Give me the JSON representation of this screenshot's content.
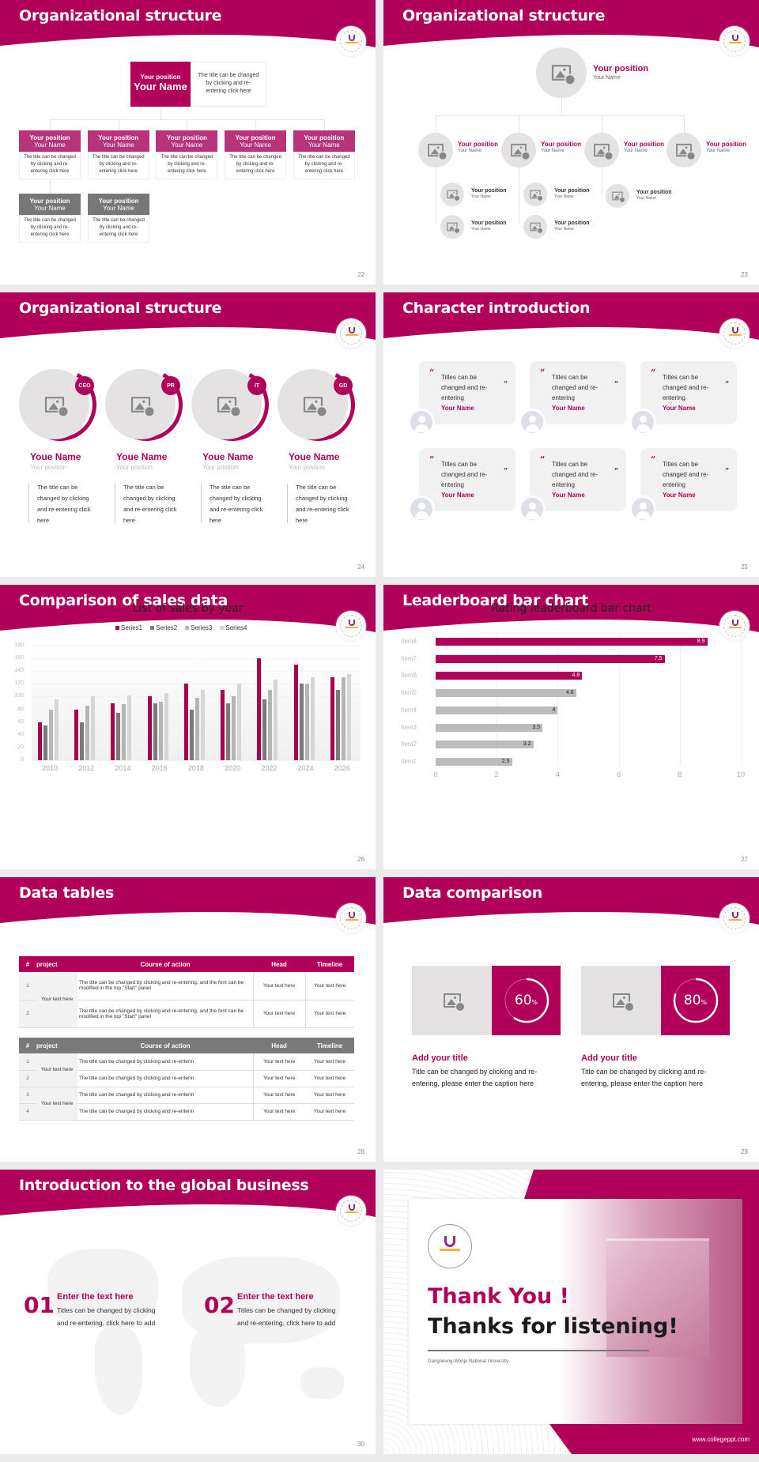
{
  "colors": {
    "accent": "#b0005a",
    "gray_node": "#777777",
    "light_gray": "#e4e2e3",
    "bar_gray": "#bcbcbc"
  },
  "logo_icon": "university-seal-icon",
  "slides": [
    {
      "id": "s22",
      "title": "Organizational structure",
      "page": "22",
      "top": {
        "position": "Your position",
        "name": "Your Name",
        "desc": "The title can be changed by clicking and re-entering click here"
      },
      "nodes": [
        {
          "position": "Your position",
          "name": "Your Name",
          "desc": "The title can be changed by clicking and re-entering click here"
        },
        {
          "position": "Your position",
          "name": "Your Name",
          "desc": "The title can be changed by clicking and re-entering click here"
        },
        {
          "position": "Your position",
          "name": "Your Name",
          "desc": "The title can be changed by clicking and re-entering click here"
        },
        {
          "position": "Your position",
          "name": "Your Name",
          "desc": "The title can be changed by clicking and re-entering click here"
        },
        {
          "position": "Your position",
          "name": "Your Name",
          "desc": "The title can be changed by clicking and re-entering click here"
        }
      ],
      "sub_nodes": [
        {
          "position": "Your position",
          "name": "Your Name",
          "desc": "The title can be changed by clicking and re-entering click here"
        },
        {
          "position": "Your position",
          "name": "Your Name",
          "desc": "The title can be changed by clicking and re-entering click here"
        }
      ]
    },
    {
      "id": "s23",
      "title": "Organizational structure",
      "page": "23",
      "top": {
        "position": "Your position",
        "name": "Your Name"
      },
      "level2": [
        {
          "position": "Your position",
          "name": "Your Name"
        },
        {
          "position": "Your position",
          "name": "Your Name"
        },
        {
          "position": "Your position",
          "name": "Your Name"
        },
        {
          "position": "Your position",
          "name": "Your Name"
        }
      ],
      "level3": [
        {
          "position": "Your position",
          "name": "Your Name"
        },
        {
          "position": "Your position",
          "name": "Your Name"
        },
        {
          "position": "Your position",
          "name": "Your Name"
        },
        {
          "position": "Your position",
          "name": "Your Name"
        },
        {
          "position": "Your position",
          "name": "Your Name"
        }
      ]
    },
    {
      "id": "s24",
      "title": "Organizational structure",
      "page": "24",
      "people": [
        {
          "badge": "CEO",
          "name": "Youe Name",
          "position": "Your position",
          "desc": "The title can be changed by clicking and re-entering click here"
        },
        {
          "badge": "PR",
          "name": "Youe Name",
          "position": "Your position",
          "desc": "The title can be changed by clicking and re-entering click here"
        },
        {
          "badge": "IT",
          "name": "Youe Name",
          "position": "Your position",
          "desc": "The title can be changed by clicking and re-entering click here"
        },
        {
          "badge": "GD",
          "name": "Youe Name",
          "position": "Your position",
          "desc": "The title can be changed by clicking and re-entering click here"
        }
      ]
    },
    {
      "id": "s25",
      "title": "Character introduction",
      "page": "25",
      "open_quote": "“",
      "close_quote": "”",
      "cards": [
        {
          "text": "Titles can be changed and re-entering",
          "name": "Your Name"
        },
        {
          "text": "Titles can be changed and re-entering",
          "name": "Your Name"
        },
        {
          "text": "Titles can be changed and re-entering",
          "name": "Your Name"
        },
        {
          "text": "Titles can be changed and re-entering",
          "name": "Your Name"
        },
        {
          "text": "Titles can be changed and re-entering",
          "name": "Your Name"
        },
        {
          "text": "Titles can be changed and re-entering",
          "name": "Your Name"
        }
      ]
    },
    {
      "id": "s26",
      "title": "Comparison of sales data",
      "page": "26"
    },
    {
      "id": "s27",
      "title": "Leaderboard bar chart",
      "page": "27"
    },
    {
      "id": "s28",
      "title": "Data tables",
      "page": "28",
      "headers": [
        "#",
        "project",
        "Course of action",
        "Head",
        "Timeline"
      ],
      "table1": {
        "project": "Your text here",
        "rows": [
          {
            "n": "1",
            "action": "The title can be changed by clicking and re-entering, and the font can be modified in the top \"Start\" panel",
            "head": "Your text here",
            "timeline": "Your text here"
          },
          {
            "n": "2",
            "action": "The title can be changed by clicking and re-entering, and the font can be modified in the top \"Start\" panel",
            "head": "Your text here",
            "timeline": "Your text here"
          }
        ]
      },
      "table2": {
        "projects": [
          "Your text here",
          "Your text here"
        ],
        "rows": [
          {
            "n": "1",
            "action": "The title can be changed by clicking and re-enterin",
            "head": "Your text here",
            "timeline": "Your text here"
          },
          {
            "n": "2",
            "action": "The title can be changed by clicking and re-enterin",
            "head": "Your text here",
            "timeline": "Your text here"
          },
          {
            "n": "3",
            "action": "The title can be changed by clicking and re-enterin",
            "head": "Your text here",
            "timeline": "Your text here"
          },
          {
            "n": "4",
            "action": "The title can be changed by clicking and re-enterin",
            "head": "Your text here",
            "timeline": "Your text here"
          }
        ]
      }
    },
    {
      "id": "s29",
      "title": "Data comparison",
      "page": "29",
      "items": [
        {
          "percent": "60",
          "unit": "%",
          "value": 60,
          "title": "Add your title",
          "desc": "Title can be changed by clicking and re-entering, please enter the caption here"
        },
        {
          "percent": "80",
          "unit": "%",
          "value": 80,
          "title": "Add your title",
          "desc": "Title can be changed by clicking and re-entering, please enter the caption here"
        }
      ]
    },
    {
      "id": "s30",
      "title": "Introduction to the global business",
      "page": "30",
      "items": [
        {
          "num": "01",
          "heading": "Enter the text here",
          "text": "Titles can be changed by clicking and re-entering, click here to add"
        },
        {
          "num": "02",
          "heading": "Enter the text here",
          "text": "Titles can be changed by clicking and re-entering, click here to add"
        }
      ]
    },
    {
      "id": "s31",
      "thank_you": "Thank You !",
      "thanks": "Thanks for listening!",
      "university": "Gangneung-Wonju National University",
      "website": "www.collegeppt.com"
    }
  ],
  "chart_data": [
    {
      "type": "bar",
      "title": "List of sales by year",
      "categories": [
        "2010",
        "2012",
        "2014",
        "2016",
        "2018",
        "2020",
        "2022",
        "2024",
        "2026"
      ],
      "series": [
        {
          "name": "Series1",
          "color": "#a8004e",
          "values": [
            60,
            80,
            90,
            100,
            120,
            110,
            160,
            150,
            130
          ]
        },
        {
          "name": "Series2",
          "color": "#7a7a7a",
          "values": [
            55,
            60,
            75,
            90,
            80,
            90,
            96,
            120,
            110
          ]
        },
        {
          "name": "Series3",
          "color": "#b5b5b5",
          "values": [
            80,
            86,
            88,
            92,
            98,
            100,
            110,
            120,
            130
          ]
        },
        {
          "name": "Series4",
          "color": "#d6d6d6",
          "values": [
            95,
            100,
            102,
            105,
            110,
            120,
            127,
            130,
            135
          ]
        }
      ],
      "xlabel": "",
      "ylabel": "",
      "yticks": [
        "180",
        "160",
        "140",
        "120",
        "100",
        "80",
        "60",
        "40",
        "20",
        "0"
      ],
      "ylim": [
        0,
        180
      ],
      "legend_position": "top",
      "grid": true
    },
    {
      "type": "bar",
      "orientation": "horizontal",
      "title": "Rating leaderboard bar chart",
      "categories": [
        "Item8",
        "Item7",
        "Item6",
        "Item5",
        "Item4",
        "Item3",
        "Item2",
        "Item1"
      ],
      "values": [
        8.9,
        7.5,
        4.8,
        4.6,
        4,
        3.5,
        3.2,
        2.5
      ],
      "labels": [
        "8.9",
        "7.5",
        "4.8",
        "4.6",
        "4",
        "3.5",
        "3.2",
        "2.5"
      ],
      "highlight_top": 3,
      "xticks": [
        "0",
        "2",
        "4",
        "6",
        "8",
        "10"
      ],
      "xlim": [
        0,
        10
      ],
      "grid": true
    }
  ]
}
